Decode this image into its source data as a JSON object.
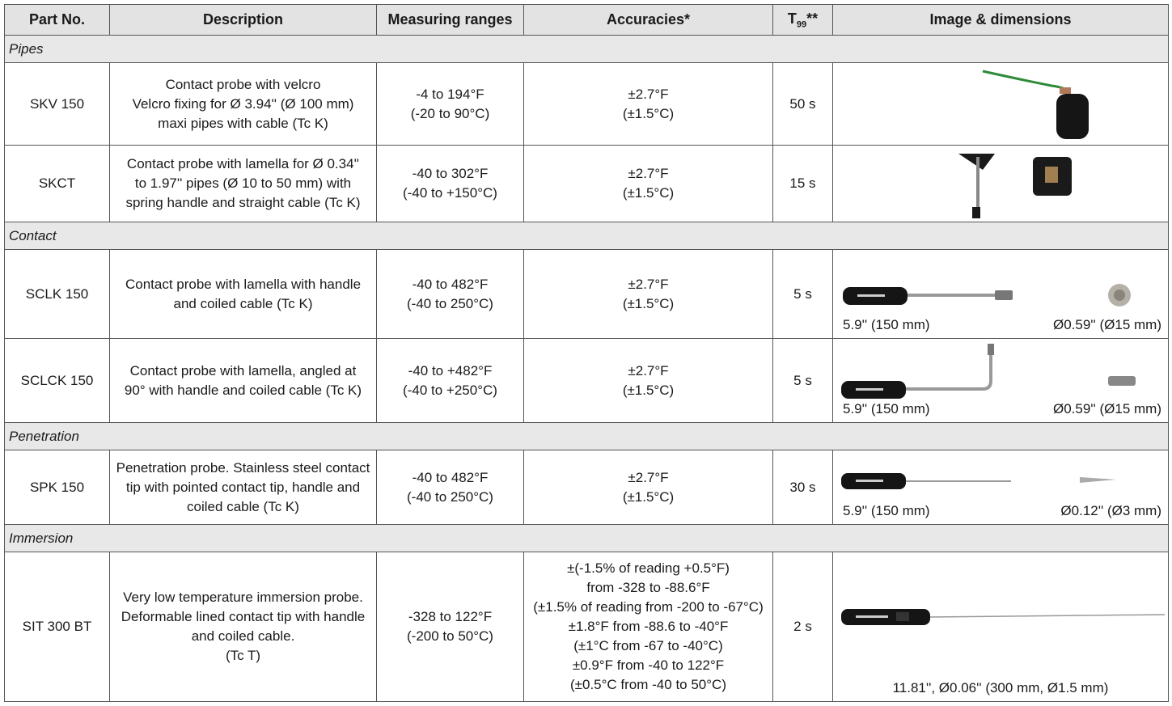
{
  "headers": {
    "part": "Part No.",
    "description": "Description",
    "ranges": "Measuring ranges",
    "accuracies": "Accuracies*",
    "t99_base": "T",
    "t99_sub": "99",
    "t99_suffix": "**",
    "image": "Image & dimensions"
  },
  "categories": {
    "pipes": "Pipes",
    "contact": "Contact",
    "penetration": "Penetration",
    "immersion": "Immersion"
  },
  "rows": {
    "skv150": {
      "part": "SKV 150",
      "desc": [
        "Contact probe with velcro",
        "Velcro fixing for Ø 3.94'' (Ø 100 mm)",
        "maxi pipes with cable (Tc K)"
      ],
      "range": [
        "-4 to 194°F",
        "(-20 to 90°C)"
      ],
      "acc": [
        "±2.7°F",
        "(±1.5°C)"
      ],
      "t99": "50 s"
    },
    "skct": {
      "part": "SKCT",
      "desc": [
        "Contact probe with lamella for Ø 0.34''",
        "to 1.97'' pipes (Ø 10 to 50 mm) with",
        "spring handle and straight cable (Tc K)"
      ],
      "range": [
        "-40 to 302°F",
        "(-40 to +150°C)"
      ],
      "acc": [
        "±2.7°F",
        "(±1.5°C)"
      ],
      "t99": "15 s"
    },
    "sclk150": {
      "part": "SCLK 150",
      "desc": [
        "Contact probe with lamella with handle",
        "and coiled cable (Tc K)"
      ],
      "range": [
        "-40 to 482°F",
        "(-40 to 250°C)"
      ],
      "acc": [
        "±2.7°F",
        "(±1.5°C)"
      ],
      "t99": "5 s",
      "dim_left": "5.9'' (150 mm)",
      "dim_right": "Ø0.59'' (Ø15 mm)"
    },
    "sclck150": {
      "part": "SCLCK 150",
      "desc": [
        "Contact probe with lamella, angled at",
        "90° with handle and coiled cable (Tc K)"
      ],
      "range": [
        "-40 to +482°F",
        "(-40 to +250°C)"
      ],
      "acc": [
        "±2.7°F",
        "(±1.5°C)"
      ],
      "t99": "5 s",
      "dim_left": "5.9'' (150 mm)",
      "dim_right": "Ø0.59'' (Ø15 mm)"
    },
    "spk150": {
      "part": "SPK 150",
      "desc": [
        "Penetration probe. Stainless steel contact",
        "tip with pointed contact tip, handle and",
        "coiled cable (Tc K)"
      ],
      "range": [
        "-40 to 482°F",
        "(-40 to 250°C)"
      ],
      "acc": [
        "±2.7°F",
        "(±1.5°C)"
      ],
      "t99": "30 s",
      "dim_left": "5.9'' (150 mm)",
      "dim_right": "Ø0.12'' (Ø3 mm)"
    },
    "sit300bt": {
      "part": "SIT 300 BT",
      "desc": [
        "Very low temperature immersion probe.",
        "Deformable lined contact tip with handle",
        "and coiled cable.",
        "(Tc T)"
      ],
      "range": [
        "-328 to 122°F",
        "(-200 to 50°C)"
      ],
      "acc": [
        "±(-1.5% of reading +0.5°F)",
        "from -328 to -88.6°F",
        "(±1.5% of reading from -200 to -67°C)",
        "±1.8°F from -88.6 to -40°F",
        "(±1°C from -67 to -40°C)",
        "±0.9°F from -40 to 122°F",
        "(±0.5°C from -40 to 50°C)"
      ],
      "t99": "2 s",
      "dim_center": "11.81'', Ø0.06'' (300 mm, Ø1.5 mm)"
    }
  }
}
